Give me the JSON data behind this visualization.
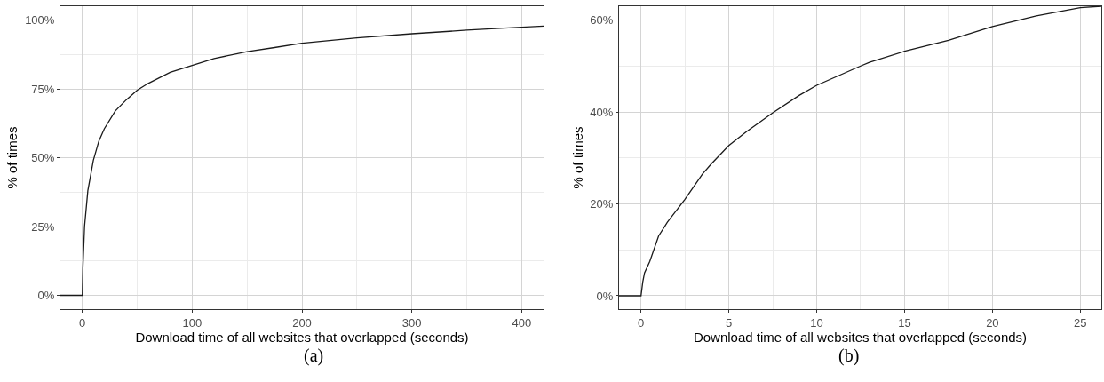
{
  "chart_data": [
    {
      "type": "line",
      "xlabel": "Download time of all websites that overlapped (seconds)",
      "ylabel": "% of times",
      "annotations": [
        "(a)"
      ],
      "xlim": [
        -20,
        420
      ],
      "ylim": [
        -5,
        105
      ],
      "xticks": [
        0,
        100,
        200,
        300,
        400
      ],
      "yticks": [
        {
          "value": 0,
          "label": "0%"
        },
        {
          "value": 25,
          "label": "25%"
        },
        {
          "value": 50,
          "label": "50%"
        },
        {
          "value": 75,
          "label": "75%"
        },
        {
          "value": 100,
          "label": "100%"
        }
      ],
      "grid": true,
      "series": [
        {
          "color": "#1a1a1a",
          "x": [
            -20,
            0,
            0.5,
            2,
            5,
            10,
            15,
            20,
            30,
            40,
            50,
            60,
            80,
            100,
            120,
            150,
            175,
            200,
            250,
            300,
            350,
            380,
            420
          ],
          "values": [
            0,
            0,
            10,
            25,
            38,
            49,
            56,
            60.5,
            67,
            71,
            74.5,
            77,
            81,
            83.5,
            86,
            88.5,
            90,
            91.6,
            93.5,
            95,
            96.3,
            97,
            97.8
          ]
        }
      ]
    },
    {
      "type": "line",
      "xlabel": "Download time of all websites that overlapped (seconds)",
      "ylabel": "% of times",
      "annotations": [
        "(b)"
      ],
      "xlim": [
        -1.25,
        26.2
      ],
      "ylim": [
        -2.9,
        63
      ],
      "xticks": [
        0,
        5,
        10,
        15,
        20,
        25
      ],
      "yticks": [
        {
          "value": 0,
          "label": "0%"
        },
        {
          "value": 20,
          "label": "20%"
        },
        {
          "value": 40,
          "label": "40%"
        },
        {
          "value": 60,
          "label": "60%"
        }
      ],
      "grid": true,
      "series": [
        {
          "color": "#1a1a1a",
          "x": [
            -1.25,
            0,
            0.1,
            0.2,
            0.5,
            1,
            1.5,
            2.5,
            3.5,
            4,
            5,
            6,
            7.5,
            9,
            10,
            12.5,
            13,
            15,
            17.5,
            20,
            22.5,
            25,
            26.2
          ],
          "values": [
            0,
            0,
            3,
            5,
            7.5,
            13,
            16,
            21,
            26.5,
            28.7,
            32.7,
            35.7,
            39.8,
            43.6,
            45.8,
            50,
            50.8,
            53.2,
            55.6,
            58.6,
            60.9,
            62.7,
            63
          ]
        }
      ]
    }
  ]
}
